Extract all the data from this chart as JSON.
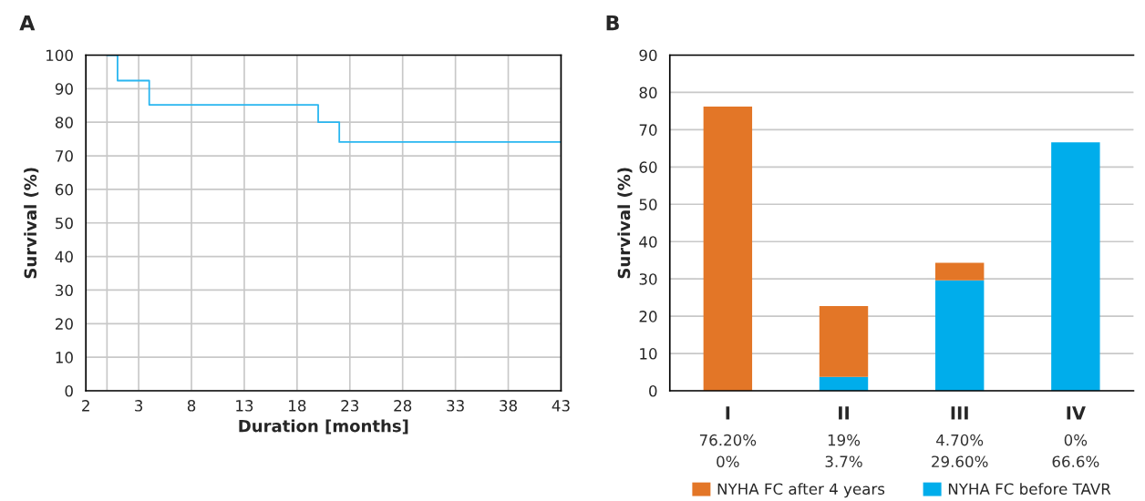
{
  "chart_data": [
    {
      "type": "step",
      "title": "A",
      "xlabel": "Duration [months]",
      "ylabel": "Survival (%)",
      "series": [
        {
          "color": "#29b6f0",
          "x": [
            0,
            1,
            4,
            20,
            22,
            43
          ],
          "values": [
            100,
            92.4,
            85.2,
            80,
            74.1,
            74.1
          ]
        }
      ],
      "xlim": [
        -2,
        43
      ],
      "xticks": [
        {
          "value": -2,
          "label": "2"
        },
        {
          "value": 0,
          "label": null
        },
        3,
        8,
        13,
        18,
        23,
        28,
        33,
        38,
        43
      ],
      "ylim": [
        0,
        100
      ],
      "yticks": [
        0,
        10,
        20,
        30,
        40,
        50,
        60,
        70,
        80,
        90,
        100
      ],
      "grid": true
    },
    {
      "type": "bar",
      "title": "B",
      "ylabel": "Survival (%)",
      "stacked": true,
      "legend": "bottom",
      "grid": "y",
      "categories": [
        "I",
        "II",
        "III",
        "IV"
      ],
      "series": [
        {
          "name": "NYHA FC before TAVR",
          "color": "#00adeb",
          "values": [
            0,
            3.7,
            29.6,
            66.6
          ],
          "value_labels": [
            "0%",
            "3.7%",
            "29.60%",
            "66.6%"
          ]
        },
        {
          "name": "NYHA FC after 4 years",
          "color": "#e37627",
          "values": [
            76.2,
            19,
            4.7,
            0
          ],
          "value_labels": [
            "76.20%",
            "19%",
            "4.70%",
            "0%"
          ]
        }
      ],
      "ylim": [
        0,
        90
      ],
      "yticks": [
        0,
        10,
        20,
        30,
        40,
        50,
        60,
        70,
        80,
        90
      ]
    }
  ]
}
